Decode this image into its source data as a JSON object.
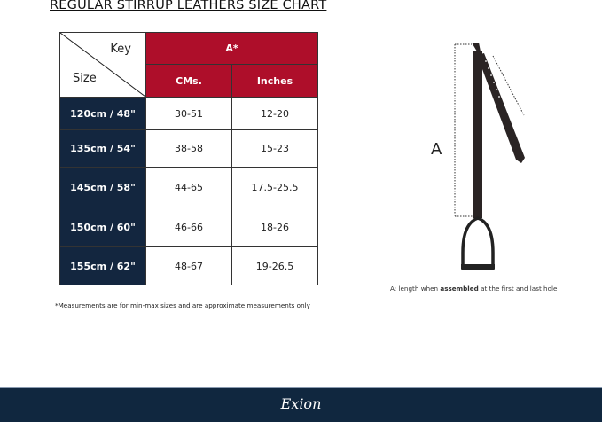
{
  "title": "REGULAR STIRRUP LEATHERS  SIZE CHART",
  "table": {
    "corner_key": "Key",
    "corner_size": "Size",
    "group_header": "A*",
    "columns": [
      "CMs.",
      "Inches"
    ],
    "rows": [
      {
        "size": "120cm / 48\"",
        "cms": "30-51",
        "inches": "12-20"
      },
      {
        "size": "135cm / 54\"",
        "cms": "38-58",
        "inches": "15-23"
      },
      {
        "size": "145cm / 58\"",
        "cms": "44-65",
        "inches": "17.5-25.5"
      },
      {
        "size": "150cm / 60\"",
        "cms": "46-66",
        "inches": "18-26"
      },
      {
        "size": "155cm / 62\"",
        "cms": "48-67",
        "inches": "19-26.5"
      }
    ]
  },
  "note": "*Measurements are for min-max sizes and are approximate measurements only",
  "diagram": {
    "label": "A",
    "caption_pre": "A: length when ",
    "caption_bold": "assembled",
    "caption_post": " at the first and last hole"
  },
  "footer": {
    "logo": "Exion"
  },
  "colors": {
    "red": "#ae0e2a",
    "navy": "#13263f"
  }
}
